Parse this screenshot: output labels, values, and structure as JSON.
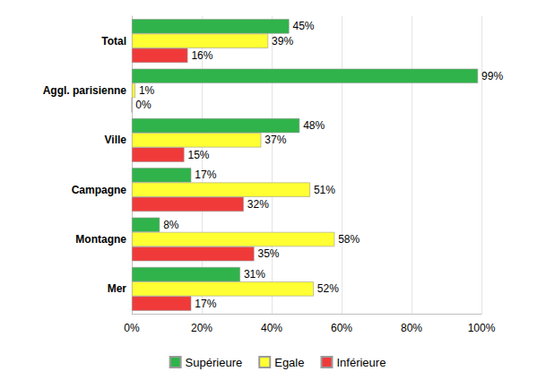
{
  "chart_data": {
    "type": "bar",
    "orientation": "horizontal",
    "categories": [
      "Total",
      "Aggl. parisienne",
      "Ville",
      "Campagne",
      "Montagne",
      "Mer"
    ],
    "series": [
      {
        "name": "Supérieure",
        "color": "#2fb34a",
        "values": [
          45,
          99,
          48,
          17,
          8,
          31
        ],
        "value_labels": [
          "45%",
          "99%",
          "48%",
          "17%",
          "8%",
          "31%"
        ]
      },
      {
        "name": "Egale",
        "color": "#ffff33",
        "values": [
          39,
          1,
          37,
          51,
          58,
          52
        ],
        "value_labels": [
          "39%",
          "1%",
          "37%",
          "51%",
          "58%",
          "52%"
        ]
      },
      {
        "name": "Inférieure",
        "color": "#f03a3a",
        "values": [
          16,
          0,
          15,
          32,
          35,
          17
        ],
        "value_labels": [
          "16%",
          "0%",
          "15%",
          "32%",
          "35%",
          "17%"
        ]
      }
    ],
    "xlim": [
      0,
      100
    ],
    "xticks": [
      {
        "value": 0,
        "label": "0%"
      },
      {
        "value": 20,
        "label": "20%"
      },
      {
        "value": 40,
        "label": "40%"
      },
      {
        "value": 60,
        "label": "60%"
      },
      {
        "value": 80,
        "label": "80%"
      },
      {
        "value": 100,
        "label": "100%"
      }
    ],
    "grid": true,
    "legend": "bottom",
    "data_labels": true
  }
}
